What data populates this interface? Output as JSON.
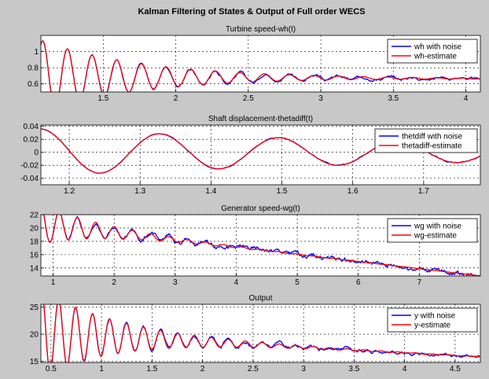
{
  "figure_title": "Kalman Filtering of States & Output of Full order WECS",
  "colors": {
    "noise": "#0000ff",
    "estimate": "#ff0000",
    "background": "#c8c8c8",
    "grid": "#000000"
  },
  "chart_data": [
    {
      "type": "line",
      "title": "Turbine speed-wh(t)",
      "xlim": [
        1.07,
        4.1
      ],
      "ylim": [
        0.5,
        1.2
      ],
      "xticks": [
        1.5,
        2,
        2.5,
        3,
        3.5,
        4
      ],
      "yticks": [
        0.6,
        0.8,
        1
      ],
      "grid": true,
      "legend_position": "top-right",
      "series": [
        {
          "name": "wh with noise",
          "color": "#0000ff"
        },
        {
          "name": "wh-estimate",
          "color": "#ff0000"
        }
      ],
      "signal": {
        "base": 0.69,
        "drift": -0.008,
        "start": 1.07,
        "amp0": 0.45,
        "decay": 1.45,
        "period": 0.17,
        "phase": -0.5,
        "noise": 0.018
      }
    },
    {
      "type": "line",
      "title": "Shaft displacement-thetadiff(t)",
      "xlim": [
        1.16,
        1.78
      ],
      "ylim": [
        -0.05,
        0.042
      ],
      "xticks": [
        1.2,
        1.3,
        1.4,
        1.5,
        1.6,
        1.7
      ],
      "yticks": [
        -0.04,
        -0.02,
        0,
        0.02,
        0.04
      ],
      "grid": true,
      "legend_position": "top-right",
      "series": [
        {
          "name": "thetdiff with noise",
          "color": "#0000ff"
        },
        {
          "name": "thetadiff-estimate",
          "color": "#ff0000"
        }
      ],
      "signal": {
        "base": 0.0,
        "drift": 0,
        "start": 1.16,
        "amp0": 0.036,
        "decay": 1.4,
        "period": 0.168,
        "phase": 0.0,
        "noise": 0.0015
      }
    },
    {
      "type": "line",
      "title": "Generator speed-wg(t)",
      "xlim": [
        0.8,
        8.0
      ],
      "ylim": [
        12.8,
        22
      ],
      "xticks": [
        1,
        2,
        3,
        4,
        5,
        6,
        7
      ],
      "yticks": [
        14,
        16,
        18,
        20,
        22
      ],
      "grid": true,
      "legend_position": "top-right",
      "series": [
        {
          "name": "wg with noise",
          "color": "#0000ff"
        },
        {
          "name": "wg-estimate",
          "color": "#ff0000"
        }
      ],
      "signal": {
        "base": 20.6,
        "drift": -1.08,
        "start": 0.8,
        "amp0": 3.0,
        "decay": 1.0,
        "period": 0.3,
        "phase": 0.0,
        "noise": 0.4
      }
    },
    {
      "type": "line",
      "title": "Output",
      "xlim": [
        0.4,
        4.75
      ],
      "ylim": [
        14.8,
        25.5
      ],
      "xticks": [
        0.5,
        1,
        1.5,
        2,
        2.5,
        3,
        3.5,
        4,
        4.5
      ],
      "yticks": [
        15,
        20,
        25
      ],
      "grid": true,
      "legend_position": "top-right",
      "series": [
        {
          "name": "y with noise",
          "color": "#0000ff"
        },
        {
          "name": "y-estimate",
          "color": "#ff0000"
        }
      ],
      "signal": {
        "base": 20.2,
        "drift": -1.0,
        "start": 0.4,
        "amp0": 8.0,
        "decay": 1.3,
        "period": 0.168,
        "phase": -0.3,
        "noise": 0.35
      }
    }
  ]
}
